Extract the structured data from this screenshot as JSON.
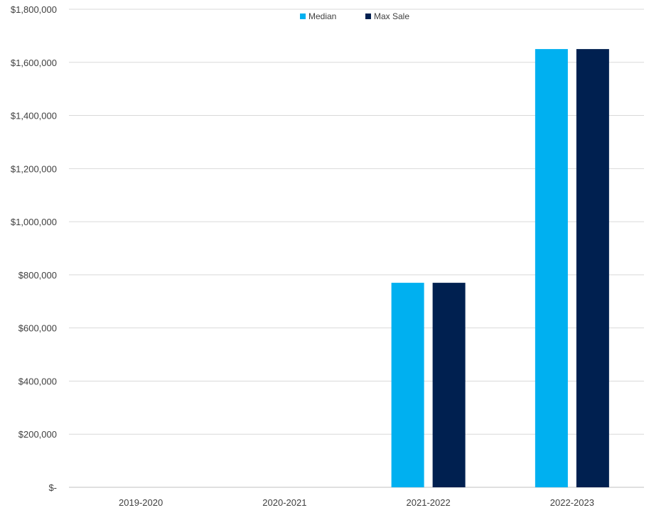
{
  "chart_data": {
    "type": "bar",
    "title": "",
    "xlabel": "",
    "ylabel": "",
    "categories": [
      "2019-2020",
      "2020-2021",
      "2021-2022",
      "2022-2023"
    ],
    "series": [
      {
        "name": "Median",
        "color": "#00B0F0",
        "values": [
          0,
          0,
          770000,
          1650000
        ]
      },
      {
        "name": "Max Sale",
        "color": "#002050",
        "values": [
          0,
          0,
          770000,
          1650000
        ]
      }
    ],
    "ylim": [
      0,
      1800000
    ],
    "y_ticks": [
      {
        "value": 0,
        "label": "$-"
      },
      {
        "value": 200000,
        "label": "$200,000"
      },
      {
        "value": 400000,
        "label": "$400,000"
      },
      {
        "value": 600000,
        "label": "$600,000"
      },
      {
        "value": 800000,
        "label": "$800,000"
      },
      {
        "value": 1000000,
        "label": "$1,000,000"
      },
      {
        "value": 1200000,
        "label": "$1,200,000"
      },
      {
        "value": 1400000,
        "label": "$1,400,000"
      },
      {
        "value": 1600000,
        "label": "$1,600,000"
      },
      {
        "value": 1800000,
        "label": "$1,800,000"
      }
    ],
    "grid": true,
    "legend_position": "top-center"
  }
}
